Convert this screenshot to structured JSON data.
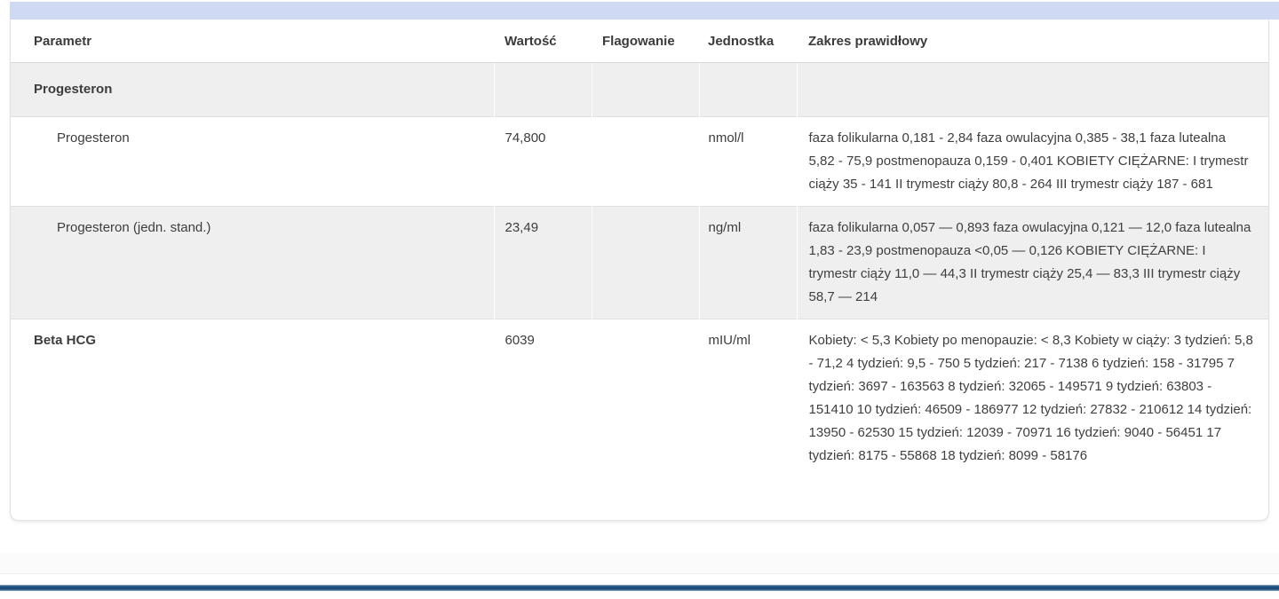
{
  "page": {
    "section_strip_color": "#cfd9f3",
    "accent_bar_color": "#1f4e7b",
    "shaded_row_color": "#efefef"
  },
  "table": {
    "columns": [
      "Parametr",
      "Wartość",
      "Flagowanie",
      "Jednostka",
      "Zakres prawidłowy"
    ],
    "rows": [
      {
        "style": "group",
        "param": "Progesteron",
        "value": "",
        "flag": "",
        "unit": "",
        "range": ""
      },
      {
        "style": "child",
        "param": "Progesteron",
        "value": "74,800",
        "flag": "",
        "unit": "nmol/l",
        "range": "faza folikularna 0,181 - 2,84 faza owulacyjna 0,385 - 38,1 faza lutealna 5,82 - 75,9 postmenopauza 0,159 - 0,401 KOBIETY CIĘŻARNE: I trymestr ciąży 35 - 141 II trymestr ciąży 80,8 - 264 III trymestr ciąży 187 - 681"
      },
      {
        "style": "child shaded",
        "param": "Progesteron (jedn. stand.)",
        "value": "23,49",
        "flag": "",
        "unit": "ng/ml",
        "range": "faza folikularna 0,057 — 0,893 faza owulacyjna 0,121 — 12,0 faza lutealna 1,83 - 23,9 postmenopauza <0,05 — 0,126 KOBIETY CIĘŻARNE: I trymestr ciąży 11,0 — 44,3 II trymestr ciąży 25,4 — 83,3 III trymestr ciąży 58,7 — 214"
      },
      {
        "style": "bold-param",
        "param": "Beta HCG",
        "value": "6039",
        "flag": "",
        "unit": "mIU/ml",
        "range": "Kobiety: < 5,3 Kobiety po menopauzie: < 8,3 Kobiety w ciąży: 3 tydzień: 5,8 - 71,2 4 tydzień: 9,5 - 750 5 tydzień: 217 - 7138 6 tydzień: 158 - 31795 7 tydzień: 3697 - 163563 8 tydzień: 32065 - 149571 9 tydzień: 63803 - 151410 10 tydzień: 46509 - 186977 12 tydzień: 27832 - 210612 14 tydzień: 13950 - 62530 15 tydzień: 12039 - 70971 16 tydzień: 9040 - 56451 17 tydzień: 8175 - 55868 18 tydzień: 8099 - 58176"
      }
    ]
  }
}
